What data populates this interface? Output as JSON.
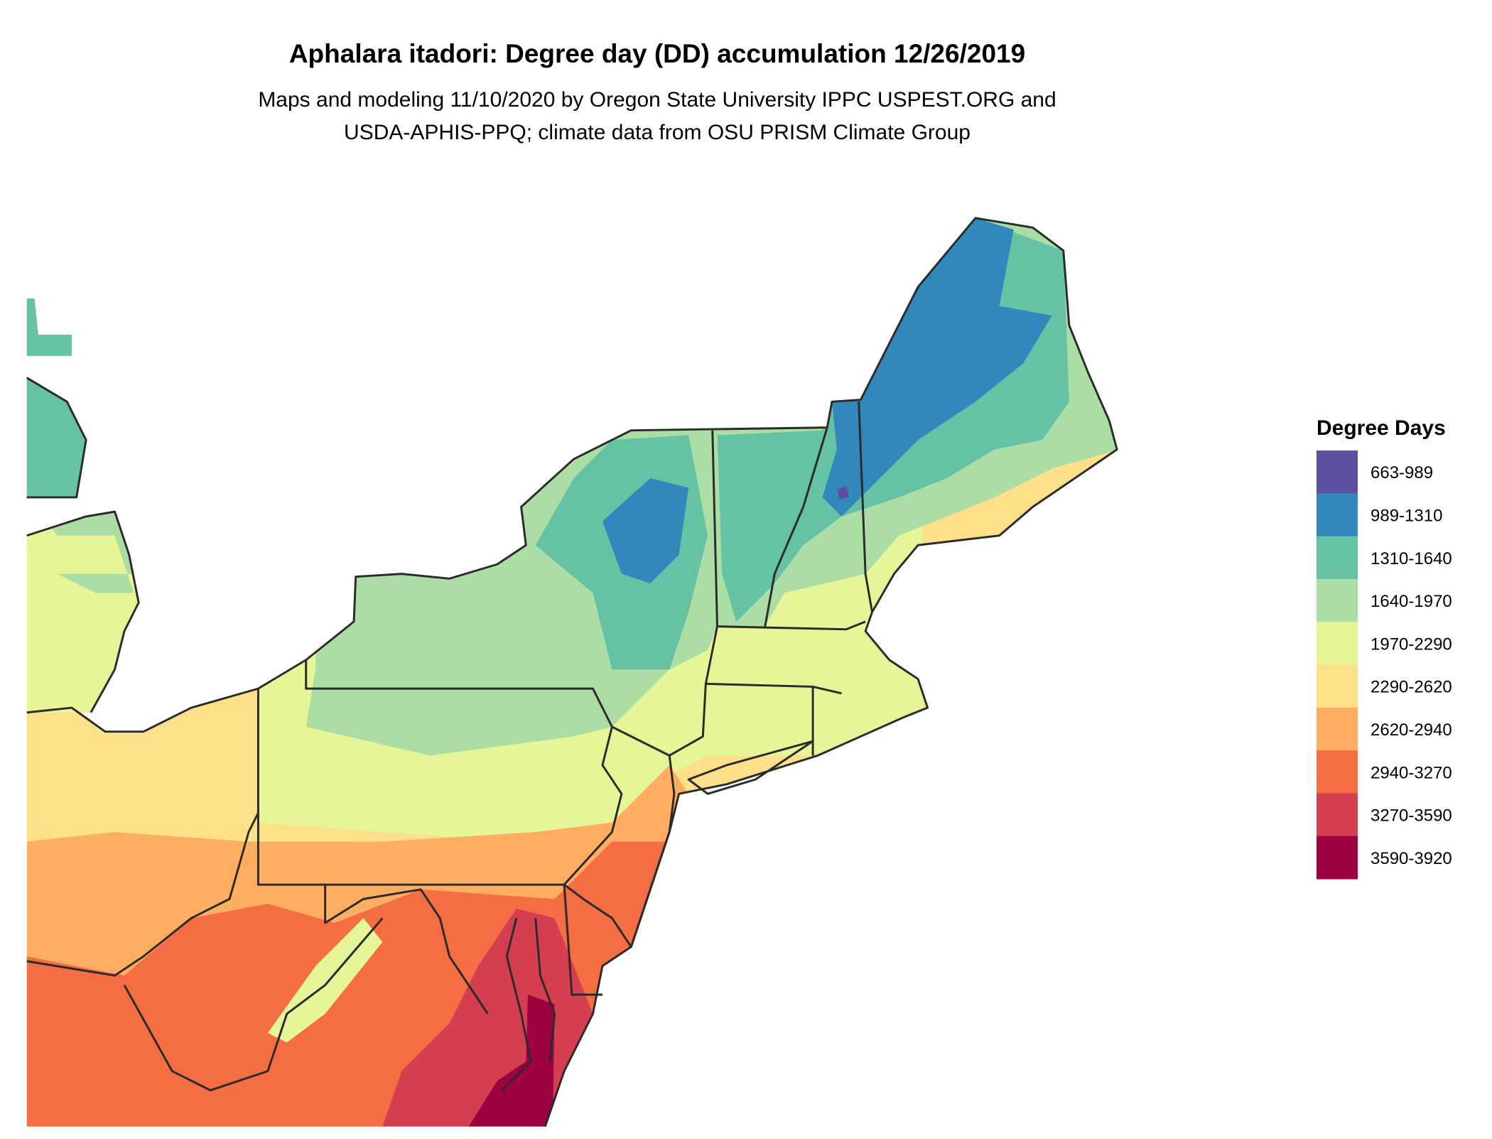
{
  "header": {
    "title": "Aphalara itadori: Degree day (DD) accumulation 12/26/2019",
    "subtitle_line1": "Maps and modeling 11/10/2020 by Oregon State University IPPC USPEST.ORG and",
    "subtitle_line2": "USDA-APHIS-PPQ; climate data from OSU PRISM Climate Group"
  },
  "legend": {
    "title": "Degree Days",
    "items": [
      {
        "label": "663-989",
        "color": "#5e4fa2"
      },
      {
        "label": "989-1310",
        "color": "#3288bd"
      },
      {
        "label": "1310-1640",
        "color": "#66c2a5"
      },
      {
        "label": "1640-1970",
        "color": "#abdda4"
      },
      {
        "label": "1970-2290",
        "color": "#e6f598"
      },
      {
        "label": "2290-2620",
        "color": "#fee08b"
      },
      {
        "label": "2620-2940",
        "color": "#fdae61"
      },
      {
        "label": "2940-3270",
        "color": "#f46d43"
      },
      {
        "label": "3270-3590",
        "color": "#d53e4f"
      },
      {
        "label": "3590-3920",
        "color": "#9e0142"
      }
    ]
  }
}
